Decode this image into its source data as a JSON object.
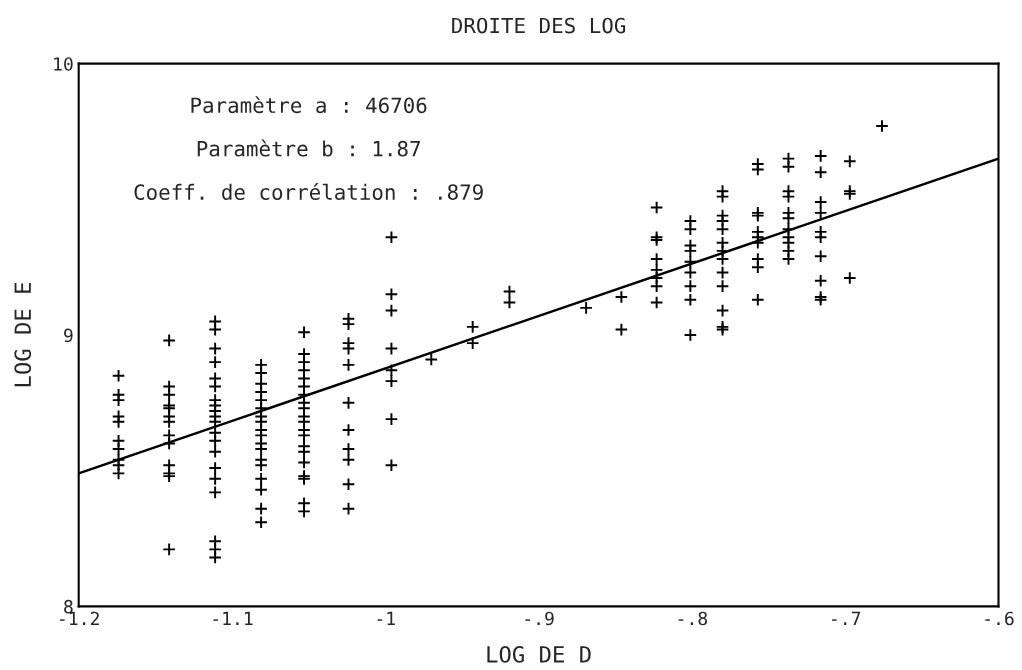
{
  "chart_data": {
    "type": "scatter",
    "title": "DROITE DES LOG",
    "xlabel": "LOG DE D",
    "ylabel": "LOG DE E",
    "annotations": [
      "Paramètre a : 46706",
      "Paramètre b : 1.87",
      "Coeff. de corrélation : .879"
    ],
    "xlim": [
      -1.2,
      -0.6
    ],
    "ylim": [
      8,
      10
    ],
    "xticks": [
      {
        "value": -1.2,
        "label": "-1.2"
      },
      {
        "value": -1.1,
        "label": "-1.1"
      },
      {
        "value": -1,
        "label": "-1"
      },
      {
        "value": -0.9,
        "label": "-.9"
      },
      {
        "value": -0.8,
        "label": "-.8"
      },
      {
        "value": -0.7,
        "label": "-.7"
      },
      {
        "value": -0.6,
        "label": "-.6"
      }
    ],
    "yticks": [
      8,
      9,
      10
    ],
    "grid": false,
    "series": [
      {
        "color": "#000000",
        "marker": "cross",
        "x": [
          -1.174,
          -1.174,
          -1.174,
          -1.174,
          -1.174,
          -1.174,
          -1.174,
          -1.174,
          -1.174,
          -1.174,
          -1.141,
          -1.141,
          -1.141,
          -1.141,
          -1.141,
          -1.141,
          -1.141,
          -1.141,
          -1.141,
          -1.141,
          -1.141,
          -1.141,
          -1.141,
          -1.111,
          -1.111,
          -1.111,
          -1.111,
          -1.111,
          -1.111,
          -1.111,
          -1.111,
          -1.111,
          -1.111,
          -1.111,
          -1.111,
          -1.111,
          -1.111,
          -1.111,
          -1.111,
          -1.111,
          -1.111,
          -1.111,
          -1.111,
          -1.081,
          -1.081,
          -1.081,
          -1.081,
          -1.081,
          -1.081,
          -1.081,
          -1.081,
          -1.081,
          -1.081,
          -1.081,
          -1.081,
          -1.081,
          -1.081,
          -1.081,
          -1.081,
          -1.081,
          -1.081,
          -1.053,
          -1.053,
          -1.053,
          -1.053,
          -1.053,
          -1.053,
          -1.053,
          -1.053,
          -1.053,
          -1.053,
          -1.053,
          -1.053,
          -1.053,
          -1.053,
          -1.053,
          -1.053,
          -1.053,
          -1.053,
          -1.053,
          -1.053,
          -1.024,
          -1.024,
          -1.024,
          -1.024,
          -1.024,
          -1.024,
          -1.024,
          -1.024,
          -1.024,
          -1.024,
          -1.024,
          -0.996,
          -0.996,
          -0.996,
          -0.996,
          -0.996,
          -0.996,
          -0.996,
          -0.996,
          -0.97,
          -0.943,
          -0.943,
          -0.919,
          -0.919,
          -0.869,
          -0.846,
          -0.846,
          -0.823,
          -0.823,
          -0.823,
          -0.823,
          -0.823,
          -0.823,
          -0.823,
          -0.823,
          -0.801,
          -0.801,
          -0.801,
          -0.801,
          -0.801,
          -0.801,
          -0.801,
          -0.801,
          -0.801,
          -0.78,
          -0.78,
          -0.78,
          -0.78,
          -0.78,
          -0.78,
          -0.78,
          -0.78,
          -0.78,
          -0.78,
          -0.78,
          -0.78,
          -0.78,
          -0.757,
          -0.757,
          -0.757,
          -0.757,
          -0.757,
          -0.757,
          -0.757,
          -0.757,
          -0.757,
          -0.757,
          -0.737,
          -0.737,
          -0.737,
          -0.737,
          -0.737,
          -0.737,
          -0.737,
          -0.737,
          -0.737,
          -0.737,
          -0.737,
          -0.716,
          -0.716,
          -0.716,
          -0.716,
          -0.716,
          -0.716,
          -0.716,
          -0.716,
          -0.716,
          -0.716,
          -0.697,
          -0.697,
          -0.697,
          -0.697,
          -0.676
        ],
        "values": [
          8.85,
          8.78,
          8.76,
          8.7,
          8.68,
          8.61,
          8.58,
          8.54,
          8.52,
          8.49,
          8.98,
          8.81,
          8.78,
          8.74,
          8.73,
          8.7,
          8.68,
          8.63,
          8.6,
          8.52,
          8.49,
          8.48,
          8.21,
          9.05,
          9.02,
          8.95,
          8.9,
          8.84,
          8.81,
          8.76,
          8.74,
          8.72,
          8.7,
          8.68,
          8.64,
          8.61,
          8.57,
          8.51,
          8.47,
          8.42,
          8.24,
          8.21,
          8.18,
          8.89,
          8.86,
          8.82,
          8.79,
          8.76,
          8.73,
          8.7,
          8.68,
          8.65,
          8.63,
          8.6,
          8.58,
          8.54,
          8.52,
          8.47,
          8.43,
          8.36,
          8.31,
          9.01,
          8.93,
          8.9,
          8.87,
          8.84,
          8.81,
          8.78,
          8.75,
          8.73,
          8.7,
          8.68,
          8.65,
          8.63,
          8.59,
          8.57,
          8.53,
          8.48,
          8.47,
          8.38,
          8.35,
          9.06,
          9.04,
          8.97,
          8.95,
          8.89,
          8.75,
          8.65,
          8.58,
          8.54,
          8.45,
          8.36,
          9.36,
          9.15,
          9.09,
          8.95,
          8.87,
          8.83,
          8.69,
          8.52,
          8.91,
          9.03,
          8.97,
          9.16,
          9.12,
          9.1,
          9.14,
          9.02,
          9.47,
          9.36,
          9.35,
          9.28,
          9.24,
          9.21,
          9.18,
          9.12,
          9.42,
          9.39,
          9.33,
          9.31,
          9.27,
          9.23,
          9.18,
          9.13,
          9.0,
          9.53,
          9.51,
          9.44,
          9.42,
          9.39,
          9.34,
          9.31,
          9.28,
          9.23,
          9.18,
          9.09,
          9.03,
          9.02,
          9.63,
          9.61,
          9.45,
          9.44,
          9.38,
          9.36,
          9.34,
          9.28,
          9.25,
          9.13,
          9.65,
          9.62,
          9.53,
          9.51,
          9.45,
          9.43,
          9.39,
          9.36,
          9.34,
          9.31,
          9.28,
          9.66,
          9.6,
          9.49,
          9.45,
          9.38,
          9.36,
          9.29,
          9.2,
          9.14,
          9.13,
          9.64,
          9.53,
          9.52,
          9.21,
          9.77
        ]
      },
      {
        "type": "line",
        "color": "#000000",
        "x": [
          -1.2,
          -0.6
        ],
        "values": [
          8.49,
          9.65
        ]
      }
    ]
  }
}
